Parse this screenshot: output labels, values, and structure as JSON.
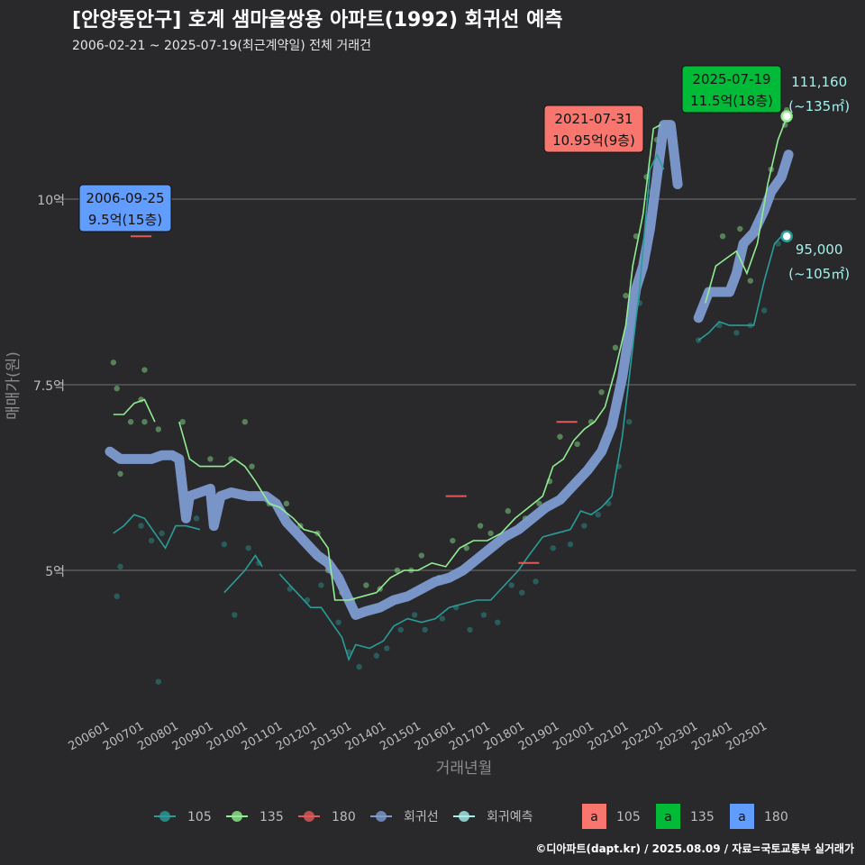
{
  "title": "[안양동안구] 호계 샘마을쌍용 아파트(1992) 회귀선 예측",
  "subtitle": "2006-02-21 ~ 2025-07-19(최근계약일) 전체 거래건",
  "credit": "©디아파트(dapt.kr) / 2025.08.09 / 자료=국토교통부 실거래가",
  "colors": {
    "background": "#29282b",
    "grid": "#5a5a5c",
    "s105": "#2a9d99",
    "s135": "#90ee90",
    "s180": "#e05a5a",
    "regression": "#7d9bd1",
    "forecast": "#a6f0ec",
    "box105": "#f8766d",
    "box135": "#00ba38",
    "box180": "#619cff"
  },
  "chart_data": {
    "type": "line",
    "xlabel": "거래년월",
    "ylabel": "매매가(원)",
    "ylim": [
      3.0,
      11.6
    ],
    "y_ticks": [
      {
        "value": 5,
        "label": "5억"
      },
      {
        "value": 7.5,
        "label": "7.5억"
      },
      {
        "value": 10,
        "label": "10억"
      }
    ],
    "x_ticks": [
      "200601",
      "200701",
      "200801",
      "200901",
      "201001",
      "201101",
      "201201",
      "201301",
      "201401",
      "201501",
      "201601",
      "201701",
      "201801",
      "201901",
      "202001",
      "202101",
      "202201",
      "202301",
      "202401",
      "202501"
    ],
    "legend": {
      "position": "bottom",
      "lines": [
        {
          "label": "105",
          "color": "#2a9d99"
        },
        {
          "label": "135",
          "color": "#90ee90"
        },
        {
          "label": "180",
          "color": "#e05a5a"
        },
        {
          "label": "회귀선",
          "color": "#7d9bd1"
        },
        {
          "label": "회귀예측",
          "color": "#a6f0ec"
        }
      ],
      "boxes": [
        {
          "glyph": "a",
          "label": "105",
          "color": "#f8766d"
        },
        {
          "glyph": "a",
          "label": "135",
          "color": "#00ba38"
        },
        {
          "glyph": "a",
          "label": "180",
          "color": "#619cff"
        }
      ]
    },
    "series": [
      {
        "name": "105",
        "color": "#2a9d99",
        "points": [
          [
            2006.1,
            5.5
          ],
          [
            2006.4,
            5.6
          ],
          [
            2006.7,
            5.75
          ],
          [
            2007.0,
            5.7
          ],
          [
            2007.3,
            5.5
          ],
          [
            2007.6,
            5.3
          ],
          [
            2007.9,
            5.6
          ],
          [
            2008.2,
            5.6
          ],
          [
            2008.6,
            5.55
          ],
          [
            2009.0,
            null
          ],
          [
            2009.3,
            4.7
          ],
          [
            2009.6,
            4.85
          ],
          [
            2009.9,
            5.0
          ],
          [
            2010.2,
            5.2
          ],
          [
            2010.4,
            5.05
          ],
          [
            2010.7,
            null
          ],
          [
            2010.9,
            4.95
          ],
          [
            2011.2,
            4.8
          ],
          [
            2011.5,
            4.65
          ],
          [
            2011.8,
            4.5
          ],
          [
            2012.1,
            4.5
          ],
          [
            2012.4,
            4.3
          ],
          [
            2012.7,
            4.1
          ],
          [
            2012.9,
            3.8
          ],
          [
            2013.1,
            4.0
          ],
          [
            2013.5,
            3.95
          ],
          [
            2013.9,
            4.05
          ],
          [
            2014.2,
            4.25
          ],
          [
            2014.6,
            4.35
          ],
          [
            2015.0,
            4.3
          ],
          [
            2015.4,
            4.35
          ],
          [
            2015.8,
            4.5
          ],
          [
            2016.2,
            4.55
          ],
          [
            2016.6,
            4.6
          ],
          [
            2017.0,
            4.6
          ],
          [
            2017.4,
            4.8
          ],
          [
            2017.8,
            5.0
          ],
          [
            2018.1,
            5.2
          ],
          [
            2018.5,
            5.45
          ],
          [
            2018.9,
            5.5
          ],
          [
            2019.3,
            5.55
          ],
          [
            2019.6,
            5.8
          ],
          [
            2019.9,
            5.75
          ],
          [
            2020.2,
            5.85
          ],
          [
            2020.5,
            6.0
          ],
          [
            2020.8,
            6.8
          ],
          [
            2021.0,
            7.6
          ],
          [
            2021.3,
            8.8
          ],
          [
            2021.6,
            10.4
          ],
          [
            2021.8,
            10.6
          ],
          [
            2022.0,
            10.4
          ],
          [
            2022.3,
            null
          ],
          [
            2023.0,
            8.1
          ],
          [
            2023.3,
            8.2
          ],
          [
            2023.6,
            8.35
          ],
          [
            2023.9,
            8.3
          ],
          [
            2024.3,
            8.3
          ],
          [
            2024.6,
            8.3
          ],
          [
            2024.9,
            8.9
          ],
          [
            2025.2,
            9.4
          ],
          [
            2025.5,
            9.55
          ]
        ]
      },
      {
        "name": "135",
        "color": "#90ee90",
        "points": [
          [
            2006.1,
            7.1
          ],
          [
            2006.4,
            7.1
          ],
          [
            2006.7,
            7.25
          ],
          [
            2007.0,
            7.3
          ],
          [
            2007.3,
            7.0
          ],
          [
            2007.6,
            null
          ],
          [
            2008.0,
            7.0
          ],
          [
            2008.3,
            6.5
          ],
          [
            2008.6,
            6.4
          ],
          [
            2009.0,
            6.4
          ],
          [
            2009.3,
            6.4
          ],
          [
            2009.6,
            6.5
          ],
          [
            2009.9,
            6.4
          ],
          [
            2010.2,
            6.2
          ],
          [
            2010.6,
            5.9
          ],
          [
            2010.9,
            5.85
          ],
          [
            2011.3,
            5.7
          ],
          [
            2011.6,
            5.55
          ],
          [
            2012.0,
            5.5
          ],
          [
            2012.3,
            5.3
          ],
          [
            2012.5,
            4.6
          ],
          [
            2012.9,
            4.6
          ],
          [
            2013.3,
            4.65
          ],
          [
            2013.7,
            4.7
          ],
          [
            2014.1,
            4.9
          ],
          [
            2014.5,
            5.0
          ],
          [
            2014.9,
            5.0
          ],
          [
            2015.3,
            5.1
          ],
          [
            2015.7,
            5.05
          ],
          [
            2016.1,
            5.3
          ],
          [
            2016.5,
            5.4
          ],
          [
            2016.9,
            5.4
          ],
          [
            2017.3,
            5.5
          ],
          [
            2017.7,
            5.7
          ],
          [
            2018.1,
            5.85
          ],
          [
            2018.5,
            6.0
          ],
          [
            2018.8,
            6.4
          ],
          [
            2019.1,
            6.5
          ],
          [
            2019.4,
            6.75
          ],
          [
            2019.7,
            6.9
          ],
          [
            2020.0,
            7.0
          ],
          [
            2020.3,
            7.2
          ],
          [
            2020.6,
            7.7
          ],
          [
            2020.9,
            8.3
          ],
          [
            2021.1,
            9.1
          ],
          [
            2021.4,
            9.8
          ],
          [
            2021.7,
            10.95
          ],
          [
            2021.9,
            11.0
          ],
          [
            2022.2,
            null
          ],
          [
            2023.2,
            8.6
          ],
          [
            2023.5,
            9.1
          ],
          [
            2023.8,
            9.2
          ],
          [
            2024.1,
            9.3
          ],
          [
            2024.4,
            9.0
          ],
          [
            2024.7,
            9.4
          ],
          [
            2025.0,
            10.2
          ],
          [
            2025.3,
            10.8
          ],
          [
            2025.55,
            11.1
          ]
        ]
      },
      {
        "name": "180",
        "color": "#e05a5a",
        "points": [
          [
            2006.7,
            9.5
          ],
          [
            2007.2,
            9.5
          ]
        ]
      }
    ],
    "segments_180": [
      [
        [
          2006.6,
          9.5
        ],
        [
          2007.2,
          9.5
        ]
      ],
      [
        [
          2015.7,
          6.0
        ],
        [
          2016.3,
          6.0
        ]
      ],
      [
        [
          2017.8,
          5.1
        ],
        [
          2018.4,
          5.1
        ]
      ],
      [
        [
          2018.9,
          7.0
        ],
        [
          2019.5,
          7.0
        ]
      ]
    ],
    "regression": [
      [
        [
          2006.0,
          6.6
        ],
        [
          2006.3,
          6.5
        ],
        [
          2006.8,
          6.5
        ],
        [
          2007.2,
          6.5
        ],
        [
          2007.5,
          6.55
        ],
        [
          2007.8,
          6.55
        ],
        [
          2008.0,
          6.5
        ],
        [
          2008.2,
          5.7
        ],
        [
          2008.3,
          6.0
        ],
        [
          2008.6,
          6.05
        ],
        [
          2008.9,
          6.1
        ],
        [
          2009.0,
          5.6
        ],
        [
          2009.2,
          6.0
        ],
        [
          2009.5,
          6.05
        ],
        [
          2010.0,
          6.0
        ],
        [
          2010.5,
          6.0
        ],
        [
          2010.8,
          5.9
        ],
        [
          2011.1,
          5.65
        ],
        [
          2011.4,
          5.5
        ],
        [
          2011.7,
          5.35
        ],
        [
          2012.0,
          5.2
        ],
        [
          2012.3,
          5.1
        ],
        [
          2012.6,
          4.9
        ],
        [
          2012.9,
          4.6
        ],
        [
          2013.1,
          4.4
        ],
        [
          2013.4,
          4.45
        ],
        [
          2013.8,
          4.5
        ],
        [
          2014.2,
          4.6
        ],
        [
          2014.6,
          4.65
        ],
        [
          2015.0,
          4.75
        ],
        [
          2015.4,
          4.85
        ],
        [
          2015.8,
          4.9
        ],
        [
          2016.2,
          5.0
        ],
        [
          2016.6,
          5.15
        ],
        [
          2017.0,
          5.3
        ],
        [
          2017.4,
          5.45
        ],
        [
          2017.8,
          5.55
        ],
        [
          2018.2,
          5.7
        ],
        [
          2018.6,
          5.85
        ],
        [
          2019.0,
          5.95
        ],
        [
          2019.4,
          6.15
        ],
        [
          2019.8,
          6.35
        ],
        [
          2020.2,
          6.6
        ],
        [
          2020.5,
          6.95
        ],
        [
          2020.8,
          7.6
        ],
        [
          2021.0,
          8.2
        ],
        [
          2021.2,
          8.8
        ],
        [
          2021.4,
          9.1
        ],
        [
          2021.6,
          9.6
        ],
        [
          2021.8,
          10.3
        ],
        [
          2022.0,
          11.0
        ],
        [
          2022.2,
          11.0
        ],
        [
          2022.4,
          10.2
        ]
      ],
      [
        [
          2023.0,
          8.4
        ],
        [
          2023.3,
          8.75
        ],
        [
          2023.6,
          8.75
        ],
        [
          2023.9,
          8.75
        ],
        [
          2024.1,
          9.0
        ],
        [
          2024.3,
          9.4
        ],
        [
          2024.6,
          9.55
        ],
        [
          2024.9,
          9.85
        ],
        [
          2025.1,
          10.1
        ],
        [
          2025.4,
          10.3
        ],
        [
          2025.6,
          10.6
        ]
      ]
    ],
    "scatter": {
      "105": [
        [
          2006.2,
          4.65
        ],
        [
          2006.3,
          5.05
        ],
        [
          2006.9,
          5.6
        ],
        [
          2007.2,
          5.4
        ],
        [
          2007.5,
          5.5
        ],
        [
          2007.4,
          3.5
        ],
        [
          2008.5,
          5.7
        ],
        [
          2009.3,
          5.35
        ],
        [
          2009.6,
          4.4
        ],
        [
          2010.0,
          5.3
        ],
        [
          2010.3,
          5.1
        ],
        [
          2011.2,
          4.75
        ],
        [
          2011.7,
          4.6
        ],
        [
          2012.1,
          4.8
        ],
        [
          2012.6,
          4.3
        ],
        [
          2012.9,
          3.9
        ],
        [
          2013.2,
          3.7
        ],
        [
          2013.7,
          3.85
        ],
        [
          2014.0,
          3.95
        ],
        [
          2014.4,
          4.2
        ],
        [
          2014.8,
          4.4
        ],
        [
          2015.1,
          4.2
        ],
        [
          2015.6,
          4.35
        ],
        [
          2016.0,
          4.5
        ],
        [
          2016.4,
          4.2
        ],
        [
          2016.8,
          4.4
        ],
        [
          2017.2,
          4.3
        ],
        [
          2017.6,
          4.8
        ],
        [
          2017.9,
          4.7
        ],
        [
          2018.3,
          4.85
        ],
        [
          2018.8,
          5.3
        ],
        [
          2019.3,
          5.35
        ],
        [
          2019.7,
          5.6
        ],
        [
          2020.1,
          5.75
        ],
        [
          2020.4,
          5.9
        ],
        [
          2020.7,
          6.4
        ],
        [
          2021.0,
          7.0
        ],
        [
          2021.3,
          8.6
        ],
        [
          2021.6,
          10.1
        ],
        [
          2023.0,
          8.1
        ],
        [
          2023.6,
          8.3
        ],
        [
          2024.1,
          8.2
        ],
        [
          2024.5,
          8.3
        ],
        [
          2024.9,
          8.5
        ],
        [
          2025.3,
          9.4
        ]
      ],
      "135": [
        [
          2006.1,
          7.8
        ],
        [
          2006.2,
          7.45
        ],
        [
          2006.3,
          6.3
        ],
        [
          2006.6,
          7.0
        ],
        [
          2006.9,
          7.3
        ],
        [
          2007.0,
          7.7
        ],
        [
          2007.0,
          7.0
        ],
        [
          2007.4,
          6.9
        ],
        [
          2008.1,
          7.0
        ],
        [
          2008.9,
          6.5
        ],
        [
          2009.5,
          6.5
        ],
        [
          2009.9,
          7.0
        ],
        [
          2010.1,
          6.4
        ],
        [
          2010.6,
          5.9
        ],
        [
          2011.1,
          5.9
        ],
        [
          2011.5,
          5.6
        ],
        [
          2012.0,
          5.5
        ],
        [
          2012.3,
          5.0
        ],
        [
          2012.7,
          4.7
        ],
        [
          2013.0,
          4.6
        ],
        [
          2013.4,
          4.8
        ],
        [
          2013.8,
          4.75
        ],
        [
          2014.3,
          5.0
        ],
        [
          2014.7,
          5.0
        ],
        [
          2015.0,
          5.2
        ],
        [
          2015.5,
          4.9
        ],
        [
          2015.9,
          5.4
        ],
        [
          2016.3,
          5.3
        ],
        [
          2016.7,
          5.6
        ],
        [
          2017.0,
          5.5
        ],
        [
          2017.5,
          5.8
        ],
        [
          2018.0,
          5.7
        ],
        [
          2018.4,
          5.9
        ],
        [
          2018.7,
          6.2
        ],
        [
          2019.0,
          6.8
        ],
        [
          2019.5,
          6.7
        ],
        [
          2019.9,
          7.0
        ],
        [
          2020.2,
          7.4
        ],
        [
          2020.6,
          8.0
        ],
        [
          2020.9,
          8.7
        ],
        [
          2021.2,
          9.5
        ],
        [
          2021.5,
          10.3
        ],
        [
          2021.8,
          10.8
        ],
        [
          2023.3,
          8.75
        ],
        [
          2023.7,
          9.5
        ],
        [
          2024.2,
          9.6
        ],
        [
          2024.5,
          8.9
        ],
        [
          2024.8,
          9.7
        ],
        [
          2025.1,
          10.4
        ],
        [
          2025.5,
          11.0
        ],
        [
          2025.55,
          11.2
        ]
      ]
    },
    "forecast": [
      {
        "x": 2025.55,
        "y": 11.116,
        "label": "111,160",
        "sub": "(~135㎡)",
        "color": "#90ee90"
      },
      {
        "x": 2025.55,
        "y": 9.5,
        "label": "95,000",
        "sub": "(~105㎡)",
        "color": "#2a9d99"
      }
    ],
    "annotations": [
      {
        "x": 2006.7,
        "y": 9.5,
        "date": "2006-09-25",
        "price": "9.5억(15층)",
        "color": "#619cff"
      },
      {
        "x": 2021.58,
        "y": 10.95,
        "date": "2021-07-31",
        "price": "10.95억(9층)",
        "color": "#f8766d"
      },
      {
        "x": 2025.55,
        "y": 11.5,
        "date": "2025-07-19",
        "price": "11.5억(18층)",
        "color": "#00ba38"
      }
    ]
  }
}
